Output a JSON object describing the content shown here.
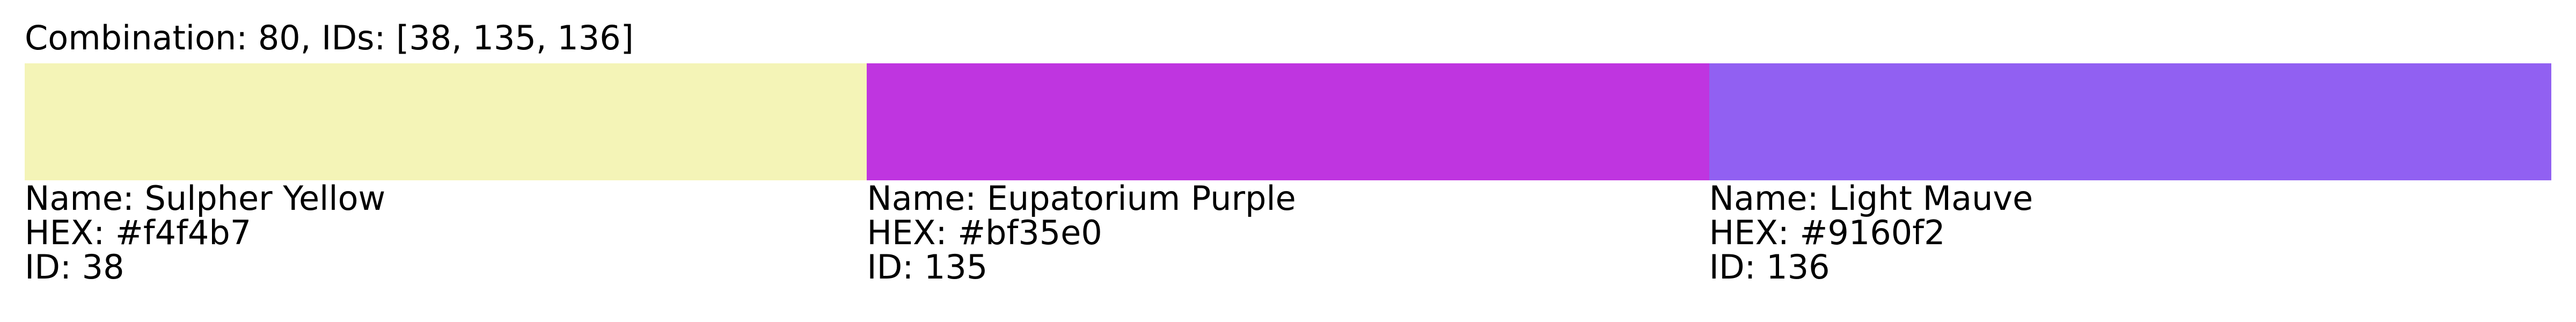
{
  "title": "Combination: 80, IDs: [38, 135, 136]",
  "colors": [
    {
      "name_text": "Name: Sulpher Yellow",
      "hex_text": "HEX: #f4f4b7",
      "id_text": "ID: 38",
      "hex": "#f4f4b7"
    },
    {
      "name_text": "Name: Eupatorium Purple",
      "hex_text": "HEX: #bf35e0",
      "id_text": "ID: 135",
      "hex": "#bf35e0"
    },
    {
      "name_text": "Name: Light Mauve",
      "hex_text": "HEX: #9160f2",
      "id_text": "ID: 136",
      "hex": "#9160f2"
    }
  ]
}
